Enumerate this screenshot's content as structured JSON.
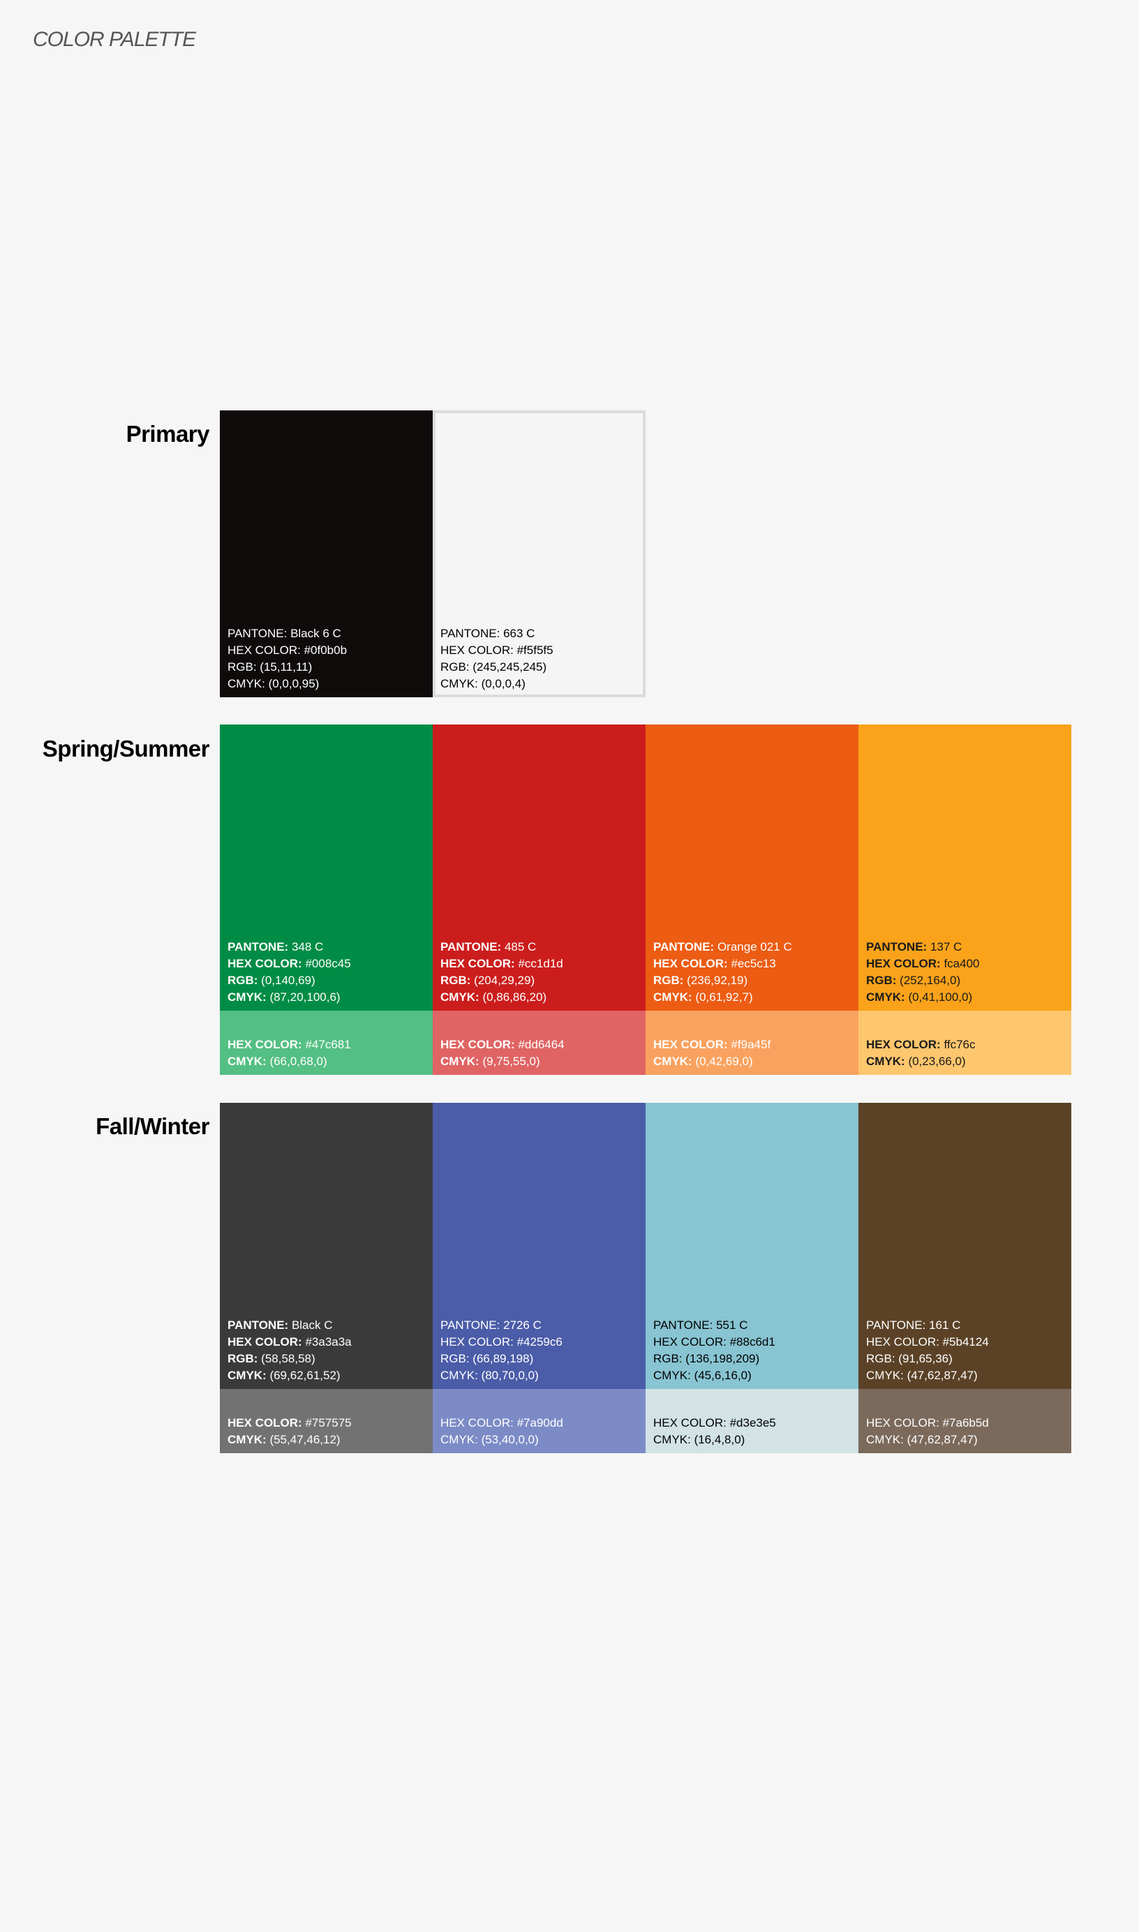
{
  "page_title": "COLOR PALETTE",
  "sections": {
    "primary": {
      "title": "Primary",
      "swatches": [
        {
          "bg": "#0f0b0b",
          "text_color": "#ffffff",
          "rows": [
            {
              "label": "PANTONE:",
              "value": " Black 6 C"
            },
            {
              "label": "HEX COLOR:",
              "value": " #0f0b0b"
            },
            {
              "label": "RGB:",
              "value": " (15,11,11)"
            },
            {
              "label": "CMYK:",
              "value": " (0,0,0,95)"
            }
          ]
        },
        {
          "bg": "#f5f5f5",
          "text_color": "#000000",
          "rows": [
            {
              "label": "PANTONE:",
              "value": " 663 C"
            },
            {
              "label": "HEX COLOR:",
              "value": " #f5f5f5"
            },
            {
              "label": "RGB:",
              "value": " (245,245,245)"
            },
            {
              "label": "CMYK:",
              "value": " (0,0,0,4)"
            }
          ]
        }
      ]
    },
    "spring_summer": {
      "title": "Spring/Summer",
      "main": [
        {
          "bg": "#008c45",
          "text_color": "#ffffff",
          "rows": [
            {
              "label": "PANTONE:",
              "value": " 348 C"
            },
            {
              "label": "HEX COLOR:",
              "value": " #008c45"
            },
            {
              "label": "RGB:",
              "value": " (0,140,69)"
            },
            {
              "label": "CMYK:",
              "value": " (87,20,100,6)"
            }
          ]
        },
        {
          "bg": "#cc1d1d",
          "text_color": "#ffffff",
          "rows": [
            {
              "label": "PANTONE:",
              "value": " 485 C"
            },
            {
              "label": "HEX COLOR:",
              "value": " #cc1d1d"
            },
            {
              "label": "RGB:",
              "value": " (204,29,29)"
            },
            {
              "label": "CMYK:",
              "value": " (0,86,86,20)"
            }
          ]
        },
        {
          "bg": "#ec5c13",
          "text_color": "#ffffff",
          "rows": [
            {
              "label": "PANTONE:",
              "value": " Orange 021 C"
            },
            {
              "label": "HEX COLOR:",
              "value": " #ec5c13"
            },
            {
              "label": "RGB:",
              "value": " (236,92,19)"
            },
            {
              "label": "CMYK:",
              "value": " (0,61,92,7)"
            }
          ]
        },
        {
          "bg": "#f9a21a",
          "text_color": "#1a1a1a",
          "rows": [
            {
              "label": "PANTONE:",
              "value": " 137 C"
            },
            {
              "label": "HEX COLOR:",
              "value": " fca400"
            },
            {
              "label": "RGB:",
              "value": " (252,164,0)"
            },
            {
              "label": "CMYK:",
              "value": " (0,41,100,0)"
            }
          ]
        }
      ],
      "tints": [
        {
          "bg": "#54bf83",
          "text_color": "#ffffff",
          "rows": [
            {
              "label": "HEX COLOR:",
              "value": " #47c681"
            },
            {
              "label": "CMYK:",
              "value": " (66,0,68,0)"
            }
          ]
        },
        {
          "bg": "#e06464",
          "text_color": "#ffffff",
          "rows": [
            {
              "label": "HEX COLOR:",
              "value": " #dd6464"
            },
            {
              "label": "CMYK:",
              "value": " (9,75,55,0)"
            }
          ]
        },
        {
          "bg": "#f9a25f",
          "text_color": "#ffffff",
          "rows": [
            {
              "label": "HEX COLOR:",
              "value": " #f9a45f"
            },
            {
              "label": "CMYK:",
              "value": " (0,42,69,0)"
            }
          ]
        },
        {
          "bg": "#fec66d",
          "text_color": "#1a1a1a",
          "rows": [
            {
              "label": "HEX COLOR:",
              "value": " ffc76c"
            },
            {
              "label": "CMYK:",
              "value": " (0,23,66,0)"
            }
          ]
        }
      ]
    },
    "fall_winter": {
      "title": "Fall/Winter",
      "main": [
        {
          "bg": "#3a3a3a",
          "text_color": "#ffffff",
          "rows": [
            {
              "label": "PANTONE:",
              "value": " Black C"
            },
            {
              "label": "HEX COLOR:",
              "value": " #3a3a3a"
            },
            {
              "label": "RGB:",
              "value": " (58,58,58)"
            },
            {
              "label": "CMYK:",
              "value": " (69,62,61,52)"
            }
          ]
        },
        {
          "bg": "#4b5ca8",
          "text_color": "#ffffff",
          "rows": [
            {
              "label": "PANTONE:",
              "value": " 2726 C"
            },
            {
              "label": "HEX COLOR:",
              "value": " #4259c6"
            },
            {
              "label": "RGB:",
              "value": " (66,89,198)"
            },
            {
              "label": "CMYK:",
              "value": " (80,70,0,0)"
            }
          ]
        },
        {
          "bg": "#88c4d2",
          "text_color": "#000000",
          "rows": [
            {
              "label": "PANTONE:",
              "value": " 551 C"
            },
            {
              "label": "HEX COLOR:",
              "value": " #88c6d1"
            },
            {
              "label": "RGB:",
              "value": " (136,198,209)"
            },
            {
              "label": "CMYK:",
              "value": " (45,6,16,0)"
            }
          ]
        },
        {
          "bg": "#5b4227",
          "text_color": "#ffffff",
          "rows": [
            {
              "label": "PANTONE:",
              "value": " 161 C"
            },
            {
              "label": "HEX COLOR:",
              "value": " #5b4124"
            },
            {
              "label": "RGB:",
              "value": " (91,65,36)"
            },
            {
              "label": "CMYK:",
              "value": " (47,62,87,47)"
            }
          ]
        }
      ],
      "tints": [
        {
          "bg": "#727272",
          "text_color": "#ffffff",
          "rows": [
            {
              "label": "HEX COLOR:",
              "value": " #757575"
            },
            {
              "label": "CMYK:",
              "value": " (55,47,46,12)"
            }
          ]
        },
        {
          "bg": "#7c8bc6",
          "text_color": "#ffffff",
          "rows": [
            {
              "label": "HEX COLOR:",
              "value": " #7a90dd"
            },
            {
              "label": "CMYK:",
              "value": " (53,40,0,0)"
            }
          ]
        },
        {
          "bg": "#d2e2e5",
          "text_color": "#000000",
          "rows": [
            {
              "label": "HEX COLOR:",
              "value": " #d3e3e5"
            },
            {
              "label": "CMYK:",
              "value": " (16,4,8,0)"
            }
          ]
        },
        {
          "bg": "#7b6a5c",
          "text_color": "#ffffff",
          "rows": [
            {
              "label": "HEX COLOR:",
              "value": " #7a6b5d"
            },
            {
              "label": "CMYK:",
              "value": " (47,62,87,47)"
            }
          ]
        }
      ]
    }
  }
}
